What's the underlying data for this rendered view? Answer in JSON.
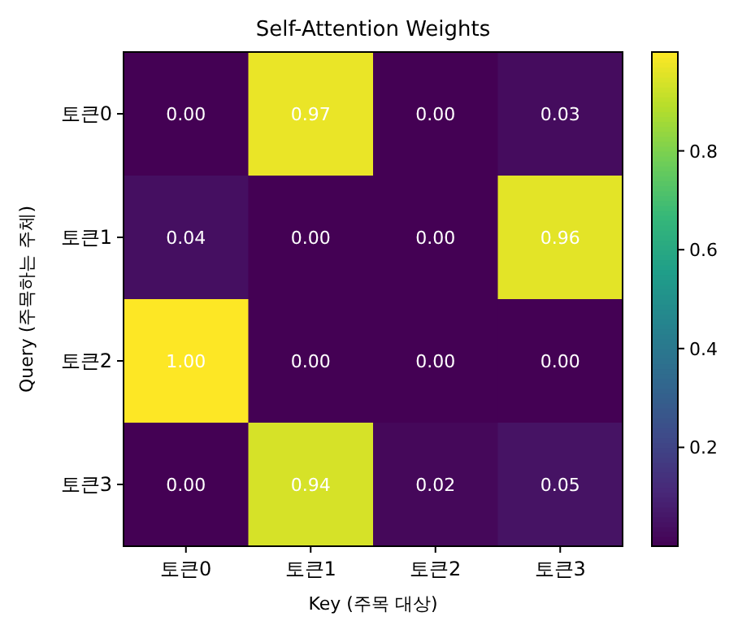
{
  "chart_data": {
    "type": "heatmap",
    "title": "Self-Attention Weights",
    "xlabel": "Key (주목 대상)",
    "ylabel": "Query (주목하는 주체)",
    "categories": [
      "토큰0",
      "토큰1",
      "토큰2",
      "토큰3"
    ],
    "y_categories": [
      "토큰0",
      "토큰1",
      "토큰2",
      "토큰3"
    ],
    "cells": [
      [
        0.0,
        0.97,
        0.0,
        0.03
      ],
      [
        0.04,
        0.0,
        0.0,
        0.96
      ],
      [
        1.0,
        0.0,
        0.0,
        0.0
      ],
      [
        0.0,
        0.94,
        0.02,
        0.05
      ]
    ],
    "cell_labels": [
      [
        "0.00",
        "0.97",
        "0.00",
        "0.03"
      ],
      [
        "0.04",
        "0.00",
        "0.00",
        "0.96"
      ],
      [
        "1.00",
        "0.00",
        "0.00",
        "0.00"
      ],
      [
        "0.00",
        "0.94",
        "0.02",
        "0.05"
      ]
    ],
    "clim": [
      0,
      1
    ],
    "cticks": [
      0.2,
      0.4,
      0.6,
      0.8
    ]
  }
}
